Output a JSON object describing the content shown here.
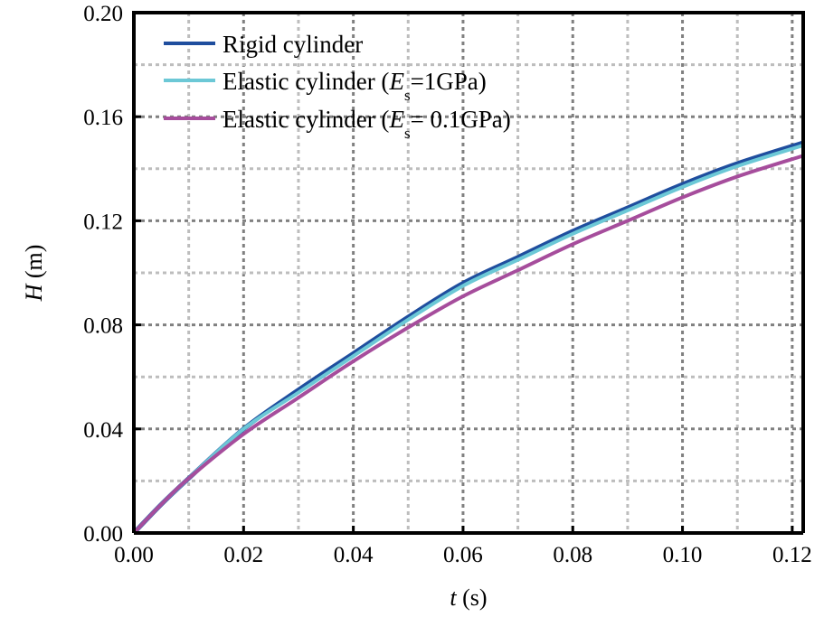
{
  "chart_data": {
    "type": "line",
    "title": "",
    "xlabel": {
      "var": "t",
      "unit": " (s)"
    },
    "ylabel": {
      "var": "H",
      "unit": " (m)"
    },
    "xlim": [
      0,
      0.122
    ],
    "ylim": [
      0,
      0.2
    ],
    "xticks": [
      "0.00",
      "0.02",
      "0.04",
      "0.06",
      "0.08",
      "0.10",
      "0.12"
    ],
    "yticks": [
      "0.00",
      "0.04",
      "0.08",
      "0.12",
      "0.16",
      "0.20"
    ],
    "grid": true,
    "legend_position": "top-left",
    "x": [
      0,
      0.005,
      0.01,
      0.02,
      0.03,
      0.04,
      0.05,
      0.06,
      0.07,
      0.08,
      0.09,
      0.1,
      0.11,
      0.122
    ],
    "series": [
      {
        "name": "Rigid cylinder",
        "legend_parts": [
          "Rigid cylinder",
          "",
          ""
        ],
        "color": "#1f4e9e",
        "values": [
          0,
          0.011,
          0.021,
          0.04,
          0.055,
          0.069,
          0.083,
          0.096,
          0.106,
          0.116,
          0.125,
          0.134,
          0.142,
          0.15
        ]
      },
      {
        "name": "Elastic cylinder (Es=1GPa)",
        "legend_parts": [
          "Elastic cylinder (",
          "E",
          "s",
          "=1GPa)"
        ],
        "color": "#6cc8d6",
        "values": [
          0,
          0.011,
          0.021,
          0.04,
          0.054,
          0.068,
          0.082,
          0.095,
          0.105,
          0.115,
          0.124,
          0.133,
          0.141,
          0.149
        ]
      },
      {
        "name": "Elastic cylinder (Es= 0.1GPa)",
        "legend_parts": [
          "Elastic cylinder (",
          "E",
          "s",
          "= 0.1GPa)"
        ],
        "color": "#a64d9c",
        "values": [
          0,
          0.011,
          0.021,
          0.038,
          0.052,
          0.066,
          0.079,
          0.091,
          0.101,
          0.111,
          0.12,
          0.129,
          0.137,
          0.145
        ]
      }
    ]
  }
}
